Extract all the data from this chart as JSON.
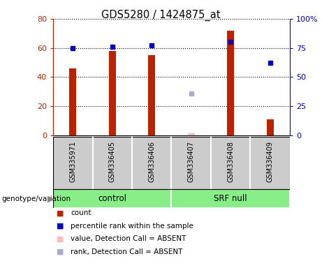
{
  "title": "GDS5280 / 1424875_at",
  "samples": [
    "GSM335971",
    "GSM336405",
    "GSM336406",
    "GSM336407",
    "GSM336408",
    "GSM336409"
  ],
  "groups": {
    "control": [
      0,
      1,
      2
    ],
    "SRF null": [
      3,
      4,
      5
    ]
  },
  "bar_values": [
    46,
    58,
    55,
    null,
    72,
    11
  ],
  "bar_color": "#bb2200",
  "absent_bar_values": [
    null,
    null,
    null,
    1.5,
    null,
    null
  ],
  "absent_bar_color": "#ffbbbb",
  "percentile_rank": [
    75,
    76,
    77,
    null,
    80,
    62
  ],
  "percentile_rank_color": "#0000bb",
  "absent_rank": [
    null,
    null,
    null,
    36,
    null,
    null
  ],
  "absent_rank_color": "#aaaacc",
  "ylim_left": [
    0,
    80
  ],
  "ylim_right": [
    0,
    100
  ],
  "yticks_left": [
    0,
    20,
    40,
    60,
    80
  ],
  "yticks_right": [
    0,
    25,
    50,
    75,
    100
  ],
  "ytick_labels_left": [
    "0",
    "20",
    "40",
    "60",
    "80"
  ],
  "ytick_labels_right": [
    "0",
    "25",
    "50",
    "75",
    "100%"
  ],
  "bar_width": 0.18,
  "marker_size": 5,
  "plot_bg_color": "#ffffff",
  "group_bg_color": "#88ee88",
  "sample_bg_color": "#cccccc",
  "legend_items": [
    {
      "label": "count",
      "color": "#bb2200"
    },
    {
      "label": "percentile rank within the sample",
      "color": "#0000bb"
    },
    {
      "label": "value, Detection Call = ABSENT",
      "color": "#ffbbbb"
    },
    {
      "label": "rank, Detection Call = ABSENT",
      "color": "#aaaacc"
    }
  ]
}
